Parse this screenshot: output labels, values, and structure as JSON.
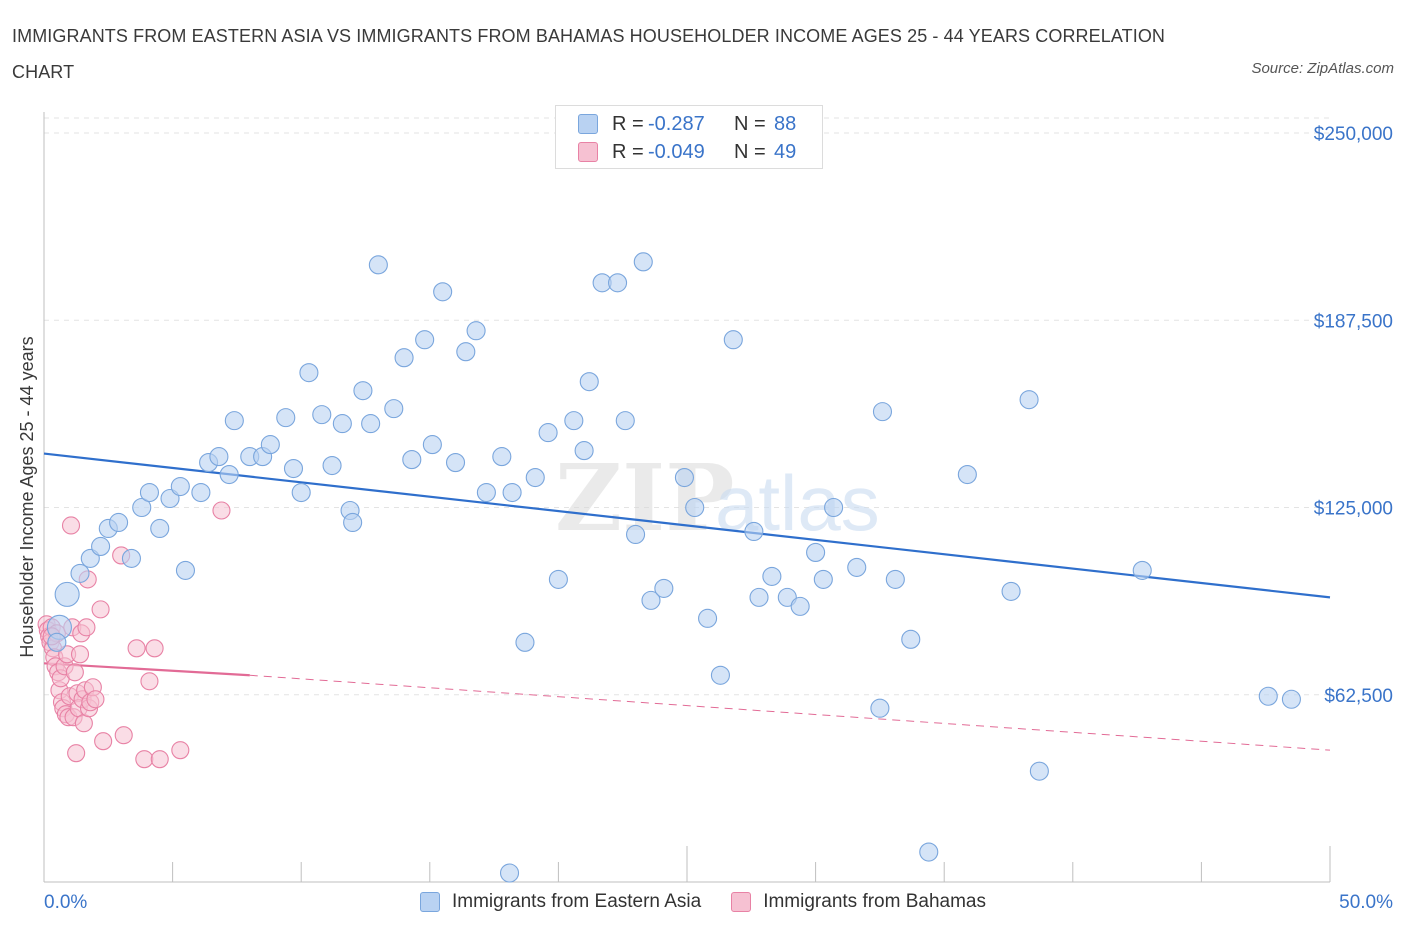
{
  "title": "IMMIGRANTS FROM EASTERN ASIA VS IMMIGRANTS FROM BAHAMAS HOUSEHOLDER INCOME AGES 25 - 44 YEARS CORRELATION CHART",
  "source": "Source: ZipAtlas.com",
  "watermark": {
    "zip": "ZIP",
    "atlas": "atlas"
  },
  "colors": {
    "blue_fill": "#b9d2f2",
    "blue_stroke": "#7aa6dd",
    "blue_line": "#2f6fcc",
    "pink_fill": "#f6c1d2",
    "pink_stroke": "#e882a5",
    "pink_line": "#e26b96",
    "axis_label": "#3a74c9",
    "grid": "#e3e3e3"
  },
  "legend_top": [
    {
      "r_label": "R =",
      "r_value": "-0.287",
      "n_label": "N =",
      "n_value": "88",
      "color": "blue"
    },
    {
      "r_label": "R =",
      "r_value": "-0.049",
      "n_label": "N =",
      "n_value": "49",
      "color": "pink"
    }
  ],
  "legend_bottom": [
    "Immigrants from Eastern Asia",
    "Immigrants from Bahamas"
  ],
  "chart_data": {
    "type": "scatter",
    "title": "IMMIGRANTS FROM EASTERN ASIA VS IMMIGRANTS FROM BAHAMAS HOUSEHOLDER INCOME AGES 25 - 44 YEARS CORRELATION CHART",
    "xlabel": "",
    "ylabel": "Householder Income Ages 25 - 44 years",
    "xlim": [
      0,
      50
    ],
    "ylim": [
      0,
      250000
    ],
    "x_tick_labels": [
      "0.0%",
      "50.0%"
    ],
    "y_ticks": [
      62500,
      125000,
      187500,
      250000
    ],
    "y_tick_labels": [
      "$62,500",
      "$125,000",
      "$187,500",
      "$250,000"
    ],
    "grid": true,
    "legend_placement": "top-center",
    "series": [
      {
        "name": "Immigrants from Eastern Asia",
        "color": "blue",
        "points": [
          [
            0.6,
            85000
          ],
          [
            0.9,
            96000
          ],
          [
            1.4,
            103000
          ],
          [
            1.8,
            108000
          ],
          [
            2.2,
            112000
          ],
          [
            2.5,
            118000
          ],
          [
            2.9,
            120000
          ],
          [
            3.4,
            108000
          ],
          [
            3.8,
            125000
          ],
          [
            4.1,
            130000
          ],
          [
            4.5,
            118000
          ],
          [
            4.9,
            128000
          ],
          [
            5.3,
            132000
          ],
          [
            5.5,
            104000
          ],
          [
            6.1,
            130000
          ],
          [
            6.4,
            140000
          ],
          [
            6.8,
            142000
          ],
          [
            7.2,
            136000
          ],
          [
            7.4,
            154000
          ],
          [
            8.0,
            142000
          ],
          [
            8.5,
            142000
          ],
          [
            8.8,
            146000
          ],
          [
            9.4,
            155000
          ],
          [
            9.7,
            138000
          ],
          [
            10.0,
            130000
          ],
          [
            10.3,
            170000
          ],
          [
            10.8,
            156000
          ],
          [
            11.2,
            139000
          ],
          [
            11.6,
            153000
          ],
          [
            11.9,
            124000
          ],
          [
            12.4,
            164000
          ],
          [
            12.7,
            153000
          ],
          [
            13.0,
            206000
          ],
          [
            13.6,
            158000
          ],
          [
            14.0,
            175000
          ],
          [
            14.3,
            141000
          ],
          [
            14.8,
            181000
          ],
          [
            15.1,
            146000
          ],
          [
            15.5,
            197000
          ],
          [
            16.0,
            140000
          ],
          [
            16.4,
            177000
          ],
          [
            16.8,
            184000
          ],
          [
            17.2,
            130000
          ],
          [
            17.8,
            142000
          ],
          [
            18.2,
            130000
          ],
          [
            18.7,
            80000
          ],
          [
            19.1,
            135000
          ],
          [
            19.6,
            150000
          ],
          [
            20.0,
            101000
          ],
          [
            20.6,
            154000
          ],
          [
            21.0,
            144000
          ],
          [
            21.2,
            167000
          ],
          [
            21.7,
            200000
          ],
          [
            22.3,
            200000
          ],
          [
            22.6,
            154000
          ],
          [
            23.0,
            116000
          ],
          [
            23.3,
            207000
          ],
          [
            23.6,
            94000
          ],
          [
            24.1,
            98000
          ],
          [
            24.9,
            135000
          ],
          [
            25.3,
            125000
          ],
          [
            25.8,
            88000
          ],
          [
            26.3,
            69000
          ],
          [
            26.8,
            181000
          ],
          [
            27.6,
            117000
          ],
          [
            27.8,
            95000
          ],
          [
            28.3,
            102000
          ],
          [
            28.9,
            95000
          ],
          [
            29.4,
            92000
          ],
          [
            30.0,
            110000
          ],
          [
            30.3,
            101000
          ],
          [
            30.7,
            125000
          ],
          [
            31.6,
            105000
          ],
          [
            32.6,
            157000
          ],
          [
            32.5,
            58000
          ],
          [
            33.1,
            101000
          ],
          [
            33.7,
            81000
          ],
          [
            34.4,
            10000
          ],
          [
            35.9,
            136000
          ],
          [
            37.6,
            97000
          ],
          [
            38.3,
            161000
          ],
          [
            38.7,
            37000
          ],
          [
            42.7,
            104000
          ],
          [
            47.6,
            62000
          ],
          [
            48.5,
            61000
          ],
          [
            18.1,
            3000
          ],
          [
            0.5,
            80000
          ],
          [
            12.0,
            120000
          ]
        ]
      },
      {
        "name": "Immigrants from Bahamas",
        "color": "pink",
        "points": [
          [
            0.1,
            86000
          ],
          [
            0.15,
            84000
          ],
          [
            0.2,
            82000
          ],
          [
            0.25,
            80000
          ],
          [
            0.3,
            85000
          ],
          [
            0.35,
            78000
          ],
          [
            0.4,
            75000
          ],
          [
            0.45,
            72000
          ],
          [
            0.5,
            83000
          ],
          [
            0.55,
            70000
          ],
          [
            0.6,
            64000
          ],
          [
            0.65,
            68000
          ],
          [
            0.7,
            60000
          ],
          [
            0.75,
            58000
          ],
          [
            0.8,
            72000
          ],
          [
            0.85,
            56000
          ],
          [
            0.9,
            76000
          ],
          [
            0.95,
            55000
          ],
          [
            1.0,
            62000
          ],
          [
            1.05,
            119000
          ],
          [
            1.1,
            85000
          ],
          [
            1.15,
            55000
          ],
          [
            1.2,
            70000
          ],
          [
            1.25,
            43000
          ],
          [
            1.3,
            63000
          ],
          [
            1.35,
            58000
          ],
          [
            1.4,
            76000
          ],
          [
            1.45,
            83000
          ],
          [
            1.5,
            61000
          ],
          [
            1.55,
            53000
          ],
          [
            1.6,
            64000
          ],
          [
            1.65,
            85000
          ],
          [
            1.7,
            101000
          ],
          [
            1.75,
            58000
          ],
          [
            1.8,
            60000
          ],
          [
            1.9,
            65000
          ],
          [
            2.0,
            61000
          ],
          [
            2.2,
            91000
          ],
          [
            2.3,
            47000
          ],
          [
            3.1,
            49000
          ],
          [
            3.0,
            109000
          ],
          [
            3.6,
            78000
          ],
          [
            3.9,
            41000
          ],
          [
            4.1,
            67000
          ],
          [
            4.3,
            78000
          ],
          [
            4.5,
            41000
          ],
          [
            5.3,
            44000
          ],
          [
            6.9,
            124000
          ],
          [
            0.3,
            82000
          ]
        ]
      }
    ],
    "trend_lines": [
      {
        "series": "Immigrants from Eastern Asia",
        "x": [
          0,
          50
        ],
        "y": [
          143000,
          95000
        ],
        "style": "solid"
      },
      {
        "series": "Immigrants from Bahamas",
        "x": [
          0,
          8
        ],
        "y": [
          73000,
          69000
        ],
        "style": "solid"
      },
      {
        "series": "Immigrants from Bahamas",
        "x": [
          8,
          50
        ],
        "y": [
          69000,
          44000
        ],
        "style": "dashed"
      }
    ]
  }
}
